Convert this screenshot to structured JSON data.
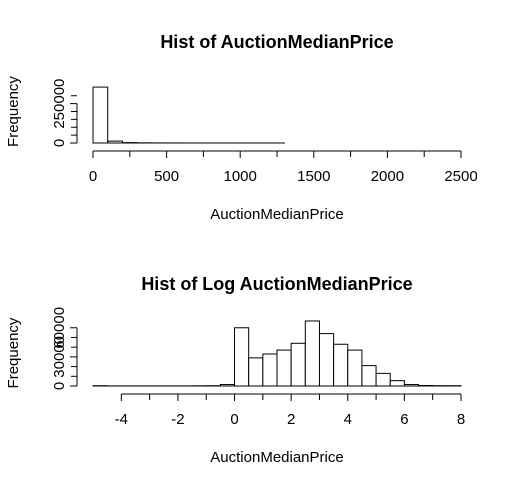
{
  "chart_data": [
    {
      "type": "bar",
      "title": "Hist of AuctionMedianPrice",
      "xlabel": "AuctionMedianPrice",
      "ylabel": "Frequency",
      "xlim": [
        0,
        2500
      ],
      "ylim": [
        0,
        400000
      ],
      "x_ticks": [
        0,
        500,
        1000,
        1500,
        2000,
        2500
      ],
      "y_ticks": [
        0,
        250000
      ],
      "y_minor_ticks": [
        50000,
        100000,
        150000,
        200000,
        300000
      ],
      "bin_width": 100,
      "bins": [
        0,
        100,
        200,
        300,
        400,
        500,
        600,
        700,
        800,
        900,
        1000,
        1100,
        1200,
        1300,
        1400,
        1500,
        1600,
        1700,
        1800,
        1900,
        2000,
        2100,
        2200,
        2300,
        2400
      ],
      "values": [
        355000,
        12000,
        2500,
        1000,
        500,
        300,
        200,
        150,
        100,
        80,
        60,
        50,
        40,
        30,
        30,
        25,
        20,
        20,
        15,
        15,
        10,
        10,
        10,
        10,
        10
      ]
    },
    {
      "type": "bar",
      "title": "Hist of Log AuctionMedianPrice",
      "xlabel": "AuctionMedianPrice",
      "ylabel": "Frequency",
      "xlim": [
        -5,
        8
      ],
      "ylim": [
        0,
        68000
      ],
      "x_ticks": [
        -4,
        -2,
        0,
        2,
        4,
        6,
        8
      ],
      "y_ticks": [
        0,
        30000,
        60000
      ],
      "y_minor_ticks": [
        10000,
        20000,
        40000,
        50000
      ],
      "bin_width": 0.5,
      "bins": [
        -5,
        -4.5,
        -4,
        -3.5,
        -3,
        -2.5,
        -2,
        -1.5,
        -1,
        -0.5,
        0,
        0.5,
        1,
        1.5,
        2,
        2.5,
        3,
        3.5,
        4,
        4.5,
        5,
        5.5,
        6,
        6.5,
        7,
        7.5
      ],
      "values": [
        300,
        100,
        100,
        100,
        100,
        100,
        100,
        200,
        300,
        1500,
        60000,
        29000,
        33000,
        37000,
        44000,
        67000,
        54000,
        43000,
        37000,
        21000,
        13000,
        5500,
        1500,
        500,
        300,
        300
      ]
    }
  ]
}
